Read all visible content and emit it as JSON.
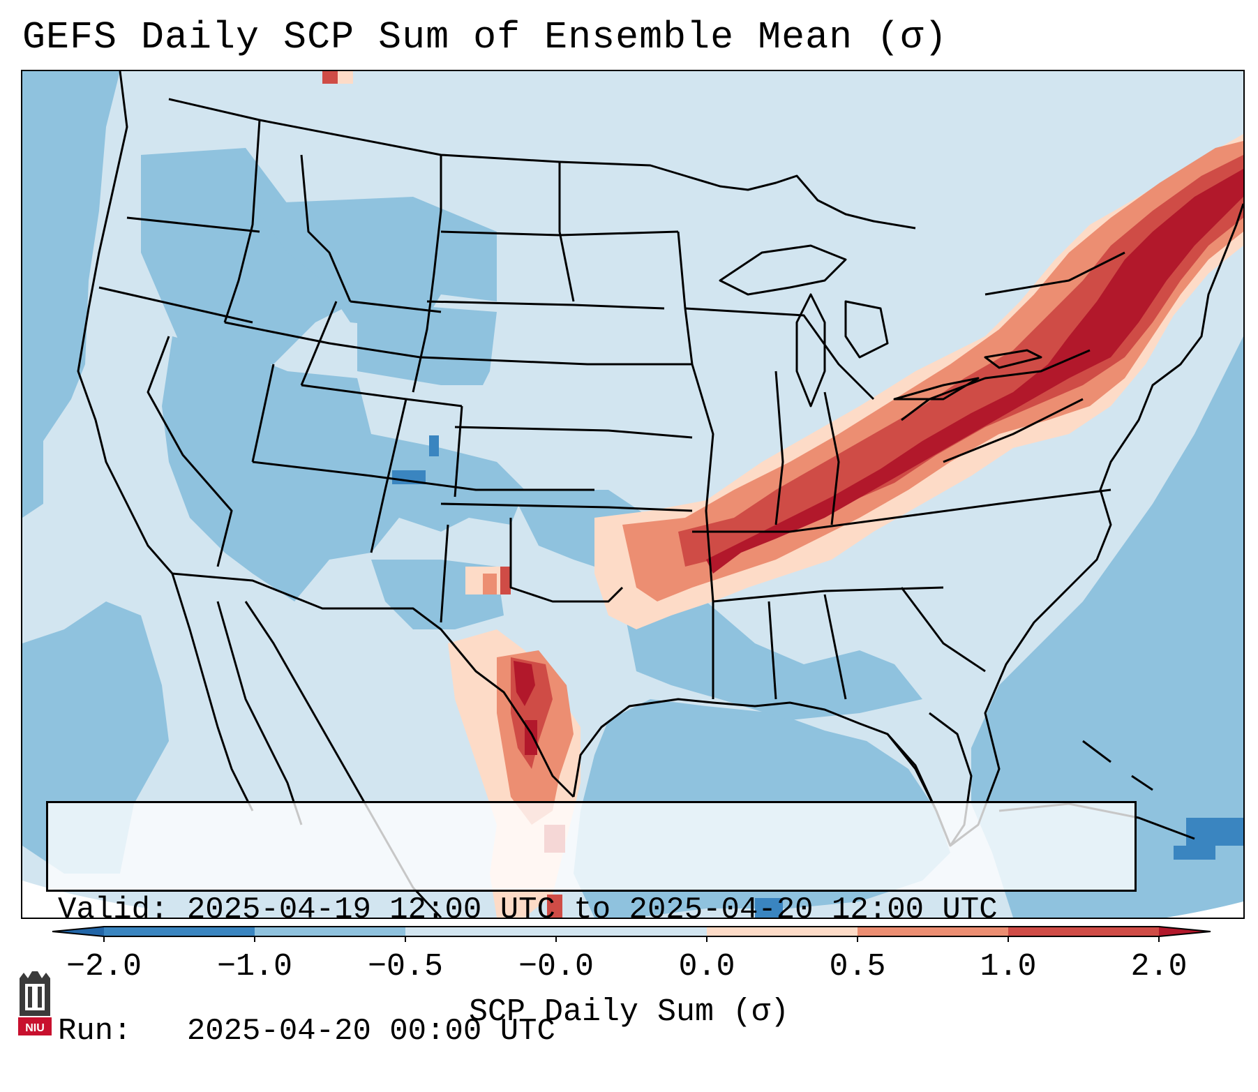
{
  "title": "GEFS Daily SCP Sum of Ensemble Mean (σ)",
  "info": {
    "valid_line": "Valid: 2025-04-19 12:00 UTC to 2025-04-20 12:00 UTC",
    "run_line": "Run:   2025-04-20 00:00 UTC"
  },
  "colorbar": {
    "label": "SCP Daily Sum (σ)",
    "ticks": [
      "−2.0",
      "−1.0",
      "−0.5",
      "−0.0",
      "0.0",
      "0.5",
      "1.0",
      "2.0"
    ],
    "bins": [
      {
        "color": "#3a85c0"
      },
      {
        "color": "#8fc2de"
      },
      {
        "color": "#d2e5f0"
      },
      {
        "color": "#d2e5f0"
      },
      {
        "color": "#fddbc7"
      },
      {
        "color": "#ec8e72"
      },
      {
        "color": "#cf4c46"
      }
    ],
    "under_color": "#2266a8",
    "over_color": "#b2182b"
  },
  "logo": {
    "text": "NIU",
    "color": "#c8102e"
  },
  "map_colors": {
    "ocean": "#8fc2de",
    "land": "#d2e5f0",
    "strong_neg": "#3a85c0",
    "light_pos": "#fddbc7",
    "mod_pos": "#ec8e72",
    "high_pos": "#cf4c46",
    "max_pos": "#b2182b",
    "border": "#000000"
  }
}
